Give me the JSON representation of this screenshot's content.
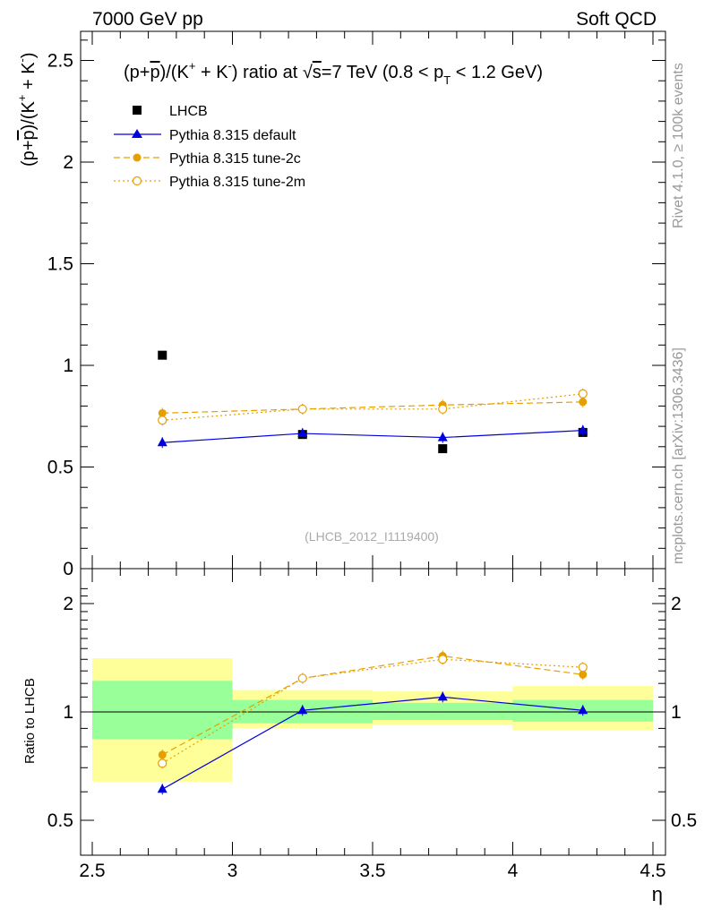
{
  "header": {
    "left": "7000 GeV pp",
    "right": "Soft QCD"
  },
  "side_labels": {
    "rivet": "Rivet 4.1.0, ≥ 100k events",
    "mcplots": "mcplots.cern.ch [arXiv:1306.3436]"
  },
  "chart_data": {
    "type": "scatter",
    "title": "(p+p̄)/(K⁺ + K⁻) ratio at √s=7 TeV (0.8 < pT < 1.2 GeV)",
    "title_parts": {
      "a": "(p+",
      "pbar": "p",
      "b": ")/(K",
      "plus": "+",
      "c": " + K",
      "minus": "-",
      "d": ") ratio at ",
      "root": "√",
      "s": "s",
      "e": "=7 TeV (0.8 < p",
      "T": "T",
      "f": " < 1.2 GeV)"
    },
    "ylabel_parts": {
      "a": "(p+",
      "pbar": "p",
      "b": ")/(K",
      "plus": "+",
      "c": " + K",
      "minus": "-",
      "d": ")"
    },
    "xlabel": "η",
    "ylabel_ratio": "Ratio to LHCB",
    "watermark": "(LHCB_2012_I1119400)",
    "xlim": [
      2.5,
      4.5
    ],
    "ylim": [
      0,
      2.65
    ],
    "ratio_ylim": [
      0.4,
      2.3
    ],
    "x_ticks": [
      "2.5",
      "3",
      "3.5",
      "4",
      "4.5"
    ],
    "y_ticks": [
      "0",
      "0.5",
      "1",
      "1.5",
      "2",
      "2.5"
    ],
    "ratio_ticks": [
      "0.5",
      "1",
      "2"
    ],
    "x": [
      2.75,
      3.25,
      3.75,
      4.25
    ],
    "bins": [
      [
        2.5,
        3.0
      ],
      [
        3.0,
        3.5
      ],
      [
        3.5,
        4.0
      ],
      [
        4.0,
        4.5
      ]
    ],
    "data": {
      "name": "LHCB",
      "values": [
        1.05,
        0.66,
        0.59,
        0.67
      ],
      "band_inner": [
        [
          0.84,
          1.22
        ],
        [
          0.93,
          1.08
        ],
        [
          0.95,
          1.06
        ],
        [
          0.94,
          1.08
        ]
      ],
      "band_outer": [
        [
          0.64,
          1.41
        ],
        [
          0.9,
          1.15
        ],
        [
          0.92,
          1.14
        ],
        [
          0.89,
          1.18
        ]
      ]
    },
    "series": [
      {
        "name": "Pythia 8.315 default",
        "color": "#0000dd",
        "marker": "triangle",
        "dash": "",
        "values": [
          0.62,
          0.665,
          0.645,
          0.68
        ],
        "ratio": [
          0.61,
          1.01,
          1.1,
          1.01
        ]
      },
      {
        "name": "Pythia 8.315 tune-2c",
        "color": "#e69f00",
        "marker": "circle",
        "dash": "7,4",
        "values": [
          0.765,
          0.785,
          0.805,
          0.82
        ],
        "ratio": [
          0.76,
          1.24,
          1.43,
          1.27
        ]
      },
      {
        "name": "Pythia 8.315 tune-2m",
        "color": "#e69f00",
        "marker": "open-circle",
        "dash": "2,3",
        "values": [
          0.73,
          0.785,
          0.785,
          0.86
        ],
        "ratio": [
          0.72,
          1.24,
          1.4,
          1.33
        ]
      }
    ]
  }
}
